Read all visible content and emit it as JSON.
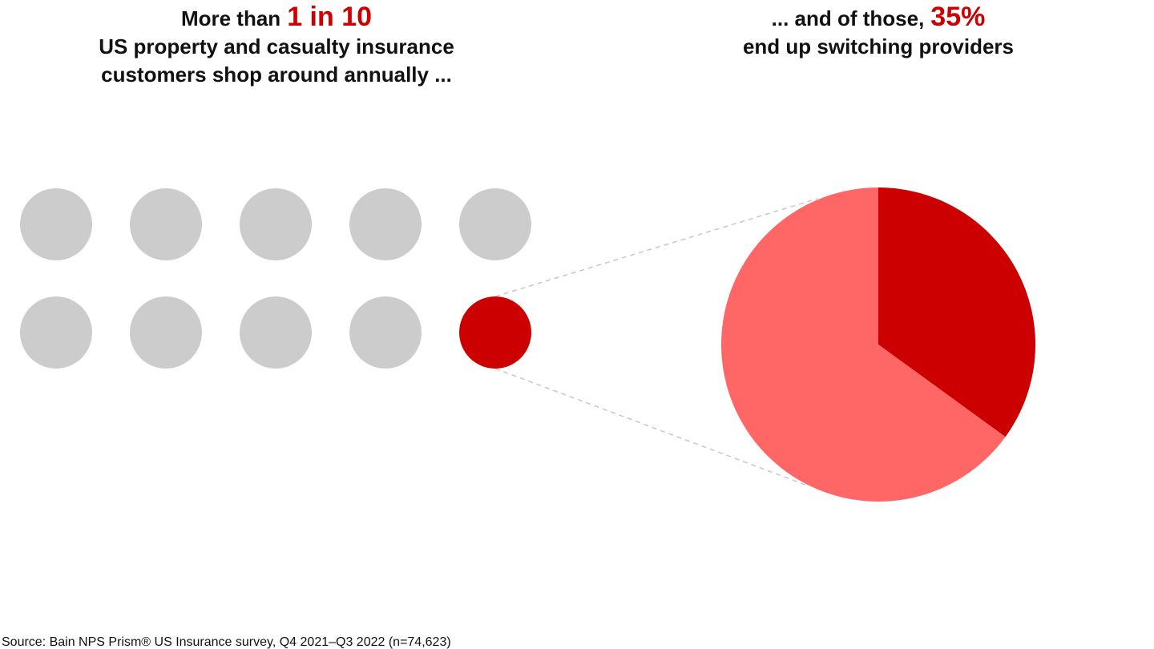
{
  "chart_data": [
    {
      "type": "icon-array",
      "title": {
        "lead": "More than",
        "highlight": "1 in 10",
        "lines": [
          "US property and casualty insurance",
          "customers shop around annually ..."
        ]
      },
      "total": 10,
      "highlighted": 1,
      "columns": 5,
      "color": "#cccccc",
      "highlight_color": "#cc0000"
    },
    {
      "type": "pie",
      "title": {
        "lead": "... and of those,",
        "highlight": "35%",
        "lines": [
          "end up switching providers"
        ]
      },
      "values": [
        35,
        65
      ],
      "colors": [
        "#cc0000",
        "#ff6666"
      ]
    }
  ],
  "source": "Source: Bain NPS Prism® US Insurance survey, Q4 2021–Q3 2022 (n=74,623)"
}
